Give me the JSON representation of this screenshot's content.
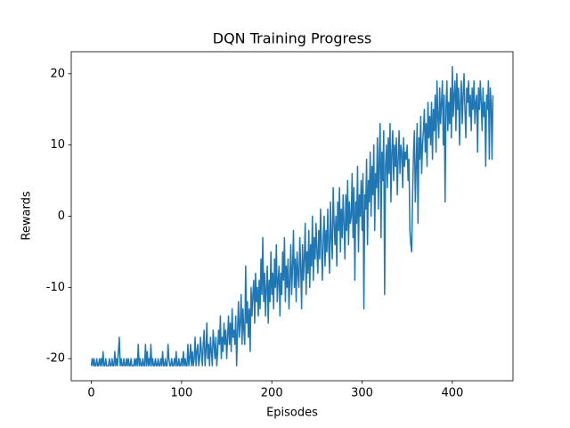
{
  "chart_data": {
    "type": "line",
    "title": "DQN Training Progress",
    "x_label": "Episodes",
    "y_label": "Rewards",
    "color": "#1f77b4",
    "grid": false,
    "xlim": [
      -22.25,
      467.25
    ],
    "xticks": [
      0,
      100,
      200,
      300,
      400
    ],
    "ylim": [
      -23.1,
      23.1
    ],
    "yticks": [
      -20,
      -10,
      0,
      10,
      20
    ],
    "x": [
      0,
      1,
      2,
      3,
      4,
      5,
      6,
      7,
      8,
      9,
      10,
      11,
      12,
      13,
      14,
      15,
      16,
      17,
      18,
      19,
      20,
      21,
      22,
      23,
      24,
      25,
      26,
      27,
      28,
      29,
      30,
      31,
      32,
      33,
      34,
      35,
      36,
      37,
      38,
      39,
      40,
      41,
      42,
      43,
      44,
      45,
      46,
      47,
      48,
      49,
      50,
      51,
      52,
      53,
      54,
      55,
      56,
      57,
      58,
      59,
      60,
      61,
      62,
      63,
      64,
      65,
      66,
      67,
      68,
      69,
      70,
      71,
      72,
      73,
      74,
      75,
      76,
      77,
      78,
      79,
      80,
      81,
      82,
      83,
      84,
      85,
      86,
      87,
      88,
      89,
      90,
      91,
      92,
      93,
      94,
      95,
      96,
      97,
      98,
      99,
      100,
      101,
      102,
      103,
      104,
      105,
      106,
      107,
      108,
      109,
      110,
      111,
      112,
      113,
      114,
      115,
      116,
      117,
      118,
      119,
      120,
      121,
      122,
      123,
      124,
      125,
      126,
      127,
      128,
      129,
      130,
      131,
      132,
      133,
      134,
      135,
      136,
      137,
      138,
      139,
      140,
      141,
      142,
      143,
      144,
      145,
      146,
      147,
      148,
      149,
      150,
      151,
      152,
      153,
      154,
      155,
      156,
      157,
      158,
      159,
      160,
      161,
      162,
      163,
      164,
      165,
      166,
      167,
      168,
      169,
      170,
      171,
      172,
      173,
      174,
      175,
      176,
      177,
      178,
      179,
      180,
      181,
      182,
      183,
      184,
      185,
      186,
      187,
      188,
      189,
      190,
      191,
      192,
      193,
      194,
      195,
      196,
      197,
      198,
      199,
      200,
      201,
      202,
      203,
      204,
      205,
      206,
      207,
      208,
      209,
      210,
      211,
      212,
      213,
      214,
      215,
      216,
      217,
      218,
      219,
      220,
      221,
      222,
      223,
      224,
      225,
      226,
      227,
      228,
      229,
      230,
      231,
      232,
      233,
      234,
      235,
      236,
      237,
      238,
      239,
      240,
      241,
      242,
      243,
      244,
      245,
      246,
      247,
      248,
      249,
      250,
      251,
      252,
      253,
      254,
      255,
      256,
      257,
      258,
      259,
      260,
      261,
      262,
      263,
      264,
      265,
      266,
      267,
      268,
      269,
      270,
      271,
      272,
      273,
      274,
      275,
      276,
      277,
      278,
      279,
      280,
      281,
      282,
      283,
      284,
      285,
      286,
      287,
      288,
      289,
      290,
      291,
      292,
      293,
      294,
      295,
      296,
      297,
      298,
      299,
      300,
      301,
      302,
      303,
      304,
      305,
      306,
      307,
      308,
      309,
      310,
      311,
      312,
      313,
      314,
      315,
      316,
      317,
      318,
      319,
      320,
      321,
      322,
      323,
      324,
      325,
      326,
      327,
      328,
      329,
      330,
      331,
      332,
      333,
      334,
      335,
      336,
      337,
      338,
      339,
      340,
      341,
      342,
      343,
      344,
      345,
      346,
      347,
      348,
      349,
      350,
      351,
      352,
      353,
      354,
      355,
      356,
      357,
      358,
      359,
      360,
      361,
      362,
      363,
      364,
      365,
      366,
      367,
      368,
      369,
      370,
      371,
      372,
      373,
      374,
      375,
      376,
      377,
      378,
      379,
      380,
      381,
      382,
      383,
      384,
      385,
      386,
      387,
      388,
      389,
      390,
      391,
      392,
      393,
      394,
      395,
      396,
      397,
      398,
      399,
      400,
      401,
      402,
      403,
      404,
      405,
      406,
      407,
      408,
      409,
      410,
      411,
      412,
      413,
      414,
      415,
      416,
      417,
      418,
      419,
      420,
      421,
      422,
      423,
      424,
      425,
      426,
      427,
      428,
      429,
      430,
      431,
      432,
      433,
      434,
      435,
      436,
      437,
      438,
      439,
      440,
      441,
      442,
      443,
      444,
      445
    ],
    "values": [
      -21,
      -20,
      -21,
      -20,
      -21,
      -21,
      -20,
      -21,
      -21,
      -20,
      -21,
      -20,
      -21,
      -19,
      -21,
      -21,
      -20,
      -21,
      -21,
      -21,
      -20,
      -21,
      -21,
      -20,
      -21,
      -21,
      -19,
      -21,
      -20,
      -21,
      -19,
      -17,
      -21,
      -20,
      -21,
      -21,
      -20,
      -21,
      -21,
      -20,
      -21,
      -20,
      -21,
      -21,
      -20,
      -21,
      -21,
      -21,
      -20,
      -21,
      -20,
      -21,
      -18,
      -21,
      -20,
      -21,
      -21,
      -20,
      -21,
      -21,
      -18,
      -21,
      -19,
      -21,
      -20,
      -21,
      -18,
      -21,
      -20,
      -21,
      -21,
      -20,
      -21,
      -21,
      -20,
      -21,
      -21,
      -20,
      -21,
      -19,
      -21,
      -21,
      -20,
      -21,
      -21,
      -18,
      -20,
      -21,
      -21,
      -20,
      -21,
      -21,
      -20,
      -21,
      -19,
      -21,
      -21,
      -20,
      -21,
      -21,
      -20,
      -21,
      -19,
      -21,
      -20,
      -21,
      -21,
      -18,
      -21,
      -20,
      -18,
      -21,
      -19,
      -21,
      -20,
      -17,
      -21,
      -19,
      -18,
      -21,
      -20,
      -17,
      -19,
      -21,
      -18,
      -16,
      -21,
      -19,
      -15,
      -20,
      -18,
      -21,
      -17,
      -19,
      -21,
      -16,
      -18,
      -20,
      -17,
      -21,
      -19,
      -16,
      -18,
      -14,
      -20,
      -17,
      -19,
      -15,
      -18,
      -16,
      -20,
      -17,
      -14,
      -18,
      -15,
      -19,
      -13,
      -17,
      -16,
      -18,
      -14,
      -21,
      -16,
      -12,
      -17,
      -15,
      -11,
      -18,
      -13,
      -16,
      -18,
      -7,
      -15,
      -12,
      -17,
      -13,
      -19,
      -10,
      -14,
      -11,
      -9,
      -15,
      -8,
      -12,
      -10,
      -14,
      -9,
      -13,
      -6,
      -11,
      -3,
      -12,
      -8,
      -14,
      -10,
      -7,
      -15,
      -9,
      -12,
      -5,
      -11,
      -8,
      -13,
      -6,
      -10,
      -4,
      -12,
      -9,
      -7,
      -14,
      -8,
      -11,
      -5,
      -9,
      -3,
      -12,
      -7,
      -10,
      -6,
      -13,
      -9,
      -4,
      -11,
      -7,
      -2,
      -10,
      -6,
      -12,
      -5,
      -8,
      -10,
      -3,
      -7,
      -13,
      -4,
      -9,
      -6,
      -1,
      -11,
      -5,
      -8,
      -2,
      -10,
      -4,
      -7,
      0,
      -9,
      -3,
      -6,
      -1,
      -5,
      -8,
      -2,
      -6,
      1,
      -4,
      -9,
      -3,
      0,
      -7,
      -2,
      -5,
      1,
      -4,
      -8,
      2,
      -3,
      -6,
      4,
      -1,
      -4,
      0,
      -7,
      2,
      -2,
      4,
      -5,
      1,
      -3,
      3,
      -1,
      -6,
      3,
      -2,
      5,
      -4,
      2,
      -1,
      0,
      6,
      -3,
      4,
      -9,
      2,
      -1,
      7,
      -5,
      3,
      0,
      5,
      -2,
      6,
      -13,
      3,
      1,
      8,
      -4,
      5,
      2,
      9,
      0,
      7,
      3,
      10,
      -2,
      6,
      4,
      11,
      1,
      8,
      13,
      -3,
      9,
      5,
      12,
      -11,
      7,
      10,
      4,
      11,
      6,
      13,
      2,
      9,
      12,
      5,
      10,
      7,
      11,
      3,
      8,
      12,
      6,
      10,
      9,
      4,
      11,
      7,
      9,
      8,
      10,
      5,
      8,
      -2,
      -4,
      -5,
      3,
      9,
      12,
      2,
      7,
      13,
      -1,
      11,
      8,
      14,
      6,
      10,
      12,
      15,
      9,
      13,
      7,
      16,
      11,
      14,
      10,
      16,
      8,
      15,
      12,
      17,
      9,
      19,
      14,
      11,
      18,
      13,
      16,
      19,
      10,
      17,
      2,
      15,
      19,
      12,
      16,
      13,
      18,
      11,
      21,
      14,
      17,
      19,
      12,
      20,
      15,
      18,
      10,
      16,
      19,
      13,
      17,
      20,
      15,
      11,
      18,
      16,
      19,
      14,
      17,
      12,
      18,
      15,
      19,
      13,
      16,
      17,
      9,
      18,
      15,
      19,
      16,
      12,
      18,
      14,
      16,
      7,
      17,
      15,
      19,
      8,
      18,
      16,
      8,
      17
    ]
  }
}
